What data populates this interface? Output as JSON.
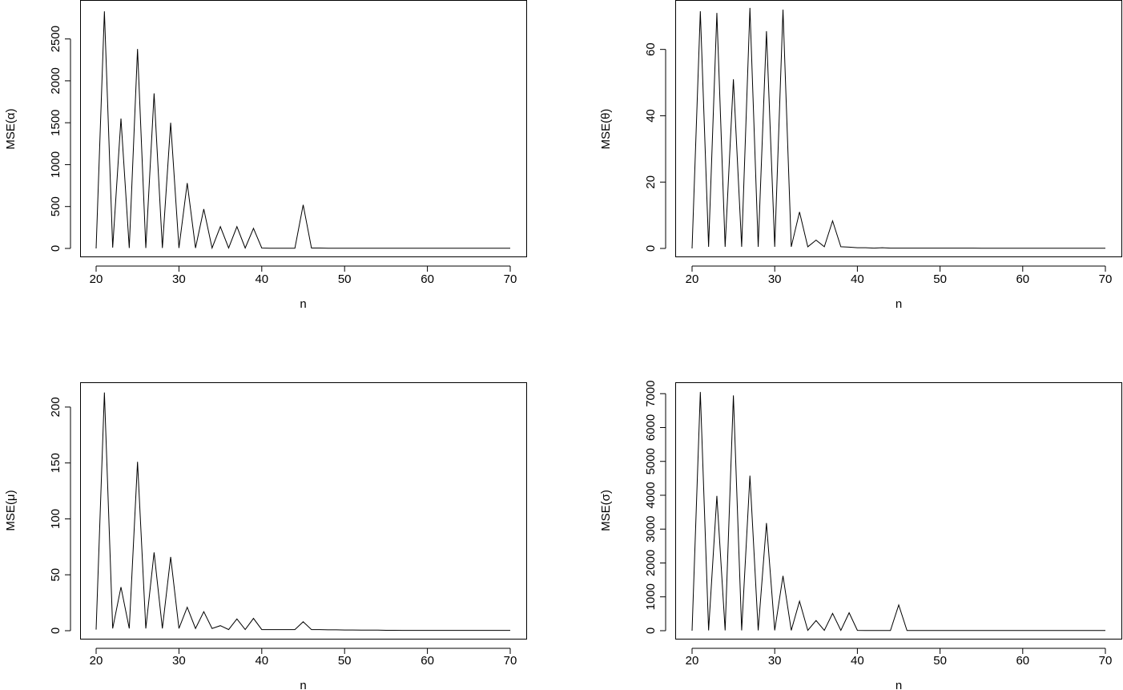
{
  "chart_data": [
    {
      "type": "line",
      "xlabel": "n",
      "ylabel": "MSE(α)",
      "xlim": [
        20,
        70
      ],
      "ylim": [
        0,
        2850
      ],
      "xticks": [
        20,
        30,
        40,
        50,
        60,
        70
      ],
      "yticks": [
        0,
        500,
        1000,
        1500,
        2000,
        2500
      ],
      "grid": false,
      "x": [
        20,
        21,
        22,
        23,
        24,
        25,
        26,
        27,
        28,
        29,
        30,
        31,
        32,
        33,
        34,
        35,
        36,
        37,
        38,
        39,
        40,
        41,
        42,
        43,
        44,
        45,
        46,
        47,
        48,
        49,
        50,
        51,
        52,
        53,
        54,
        55,
        56,
        57,
        58,
        59,
        60,
        61,
        62,
        63,
        64,
        65,
        66,
        67,
        68,
        69,
        70
      ],
      "values": [
        0,
        2830,
        10,
        1550,
        5,
        2380,
        5,
        1850,
        5,
        1500,
        5,
        780,
        5,
        470,
        5,
        260,
        5,
        260,
        5,
        240,
        5,
        3,
        3,
        3,
        3,
        520,
        5,
        5,
        3,
        3,
        2,
        2,
        2,
        2,
        2,
        2,
        2,
        2,
        2,
        2,
        2,
        2,
        2,
        2,
        2,
        2,
        2,
        2,
        2,
        2,
        2
      ]
    },
    {
      "type": "line",
      "xlabel": "n",
      "ylabel": "MSE(θ)",
      "xlim": [
        20,
        70
      ],
      "ylim": [
        0,
        72
      ],
      "xticks": [
        20,
        30,
        40,
        50,
        60,
        70
      ],
      "yticks": [
        0,
        20,
        40,
        60
      ],
      "grid": false,
      "x": [
        20,
        21,
        22,
        23,
        24,
        25,
        26,
        27,
        28,
        29,
        30,
        31,
        32,
        33,
        34,
        35,
        36,
        37,
        38,
        39,
        40,
        41,
        42,
        43,
        44,
        45,
        46,
        47,
        48,
        49,
        50,
        51,
        52,
        53,
        54,
        55,
        56,
        57,
        58,
        59,
        60,
        61,
        62,
        63,
        64,
        65,
        66,
        67,
        68,
        69,
        70
      ],
      "values": [
        0,
        71.5,
        0.5,
        71,
        0.5,
        51,
        0.5,
        72.5,
        0.5,
        65.5,
        0.5,
        72,
        0.5,
        11,
        0.5,
        2.5,
        0.5,
        8.3,
        0.5,
        0.4,
        0.2,
        0.2,
        0.1,
        0.2,
        0.1,
        0.1,
        0.1,
        0.1,
        0.1,
        0.1,
        0.1,
        0.1,
        0.1,
        0.1,
        0.1,
        0.05,
        0.05,
        0.05,
        0.05,
        0.05,
        0.05,
        0.05,
        0.05,
        0.05,
        0.05,
        0.05,
        0.05,
        0.05,
        0.05,
        0.05,
        0.05
      ]
    },
    {
      "type": "line",
      "xlabel": "n",
      "ylabel": "MSE(μ)",
      "xlim": [
        20,
        70
      ],
      "ylim": [
        0,
        215
      ],
      "xticks": [
        20,
        30,
        40,
        50,
        60,
        70
      ],
      "yticks": [
        0,
        50,
        100,
        150,
        200
      ],
      "grid": false,
      "x": [
        20,
        21,
        22,
        23,
        24,
        25,
        26,
        27,
        28,
        29,
        30,
        31,
        32,
        33,
        34,
        35,
        36,
        37,
        38,
        39,
        40,
        41,
        42,
        43,
        44,
        45,
        46,
        47,
        48,
        49,
        50,
        51,
        52,
        53,
        54,
        55,
        56,
        57,
        58,
        59,
        60,
        61,
        62,
        63,
        64,
        65,
        66,
        67,
        68,
        69,
        70
      ],
      "values": [
        1,
        213,
        2,
        39,
        2,
        151,
        2,
        70,
        2,
        66,
        2,
        21,
        2,
        17,
        2,
        4.5,
        1,
        10.5,
        1,
        11,
        1,
        1,
        1,
        1,
        1,
        8,
        1,
        1,
        0.8,
        0.8,
        0.6,
        0.6,
        0.5,
        0.5,
        0.5,
        0.4,
        0.4,
        0.3,
        0.3,
        0.3,
        0.3,
        0.3,
        0.3,
        0.3,
        0.3,
        0.3,
        0.3,
        0.3,
        0.3,
        0.3,
        0.3
      ]
    },
    {
      "type": "line",
      "xlabel": "n",
      "ylabel": "MSE(σ)",
      "xlim": [
        20,
        70
      ],
      "ylim": [
        0,
        7100
      ],
      "xticks": [
        20,
        30,
        40,
        50,
        60,
        70
      ],
      "yticks": [
        0,
        1000,
        2000,
        3000,
        4000,
        5000,
        6000,
        7000
      ],
      "grid": false,
      "x": [
        20,
        21,
        22,
        23,
        24,
        25,
        26,
        27,
        28,
        29,
        30,
        31,
        32,
        33,
        34,
        35,
        36,
        37,
        38,
        39,
        40,
        41,
        42,
        43,
        44,
        45,
        46,
        47,
        48,
        49,
        50,
        51,
        52,
        53,
        54,
        55,
        56,
        57,
        58,
        59,
        60,
        61,
        62,
        63,
        64,
        65,
        66,
        67,
        68,
        69,
        70
      ],
      "values": [
        0,
        7050,
        10,
        3980,
        10,
        6950,
        10,
        4580,
        10,
        3180,
        10,
        1620,
        10,
        870,
        10,
        300,
        10,
        510,
        10,
        530,
        10,
        5,
        5,
        5,
        5,
        760,
        5,
        5,
        5,
        5,
        5,
        5,
        5,
        5,
        5,
        5,
        5,
        5,
        5,
        5,
        5,
        5,
        5,
        5,
        5,
        5,
        5,
        5,
        5,
        5,
        5
      ]
    }
  ]
}
